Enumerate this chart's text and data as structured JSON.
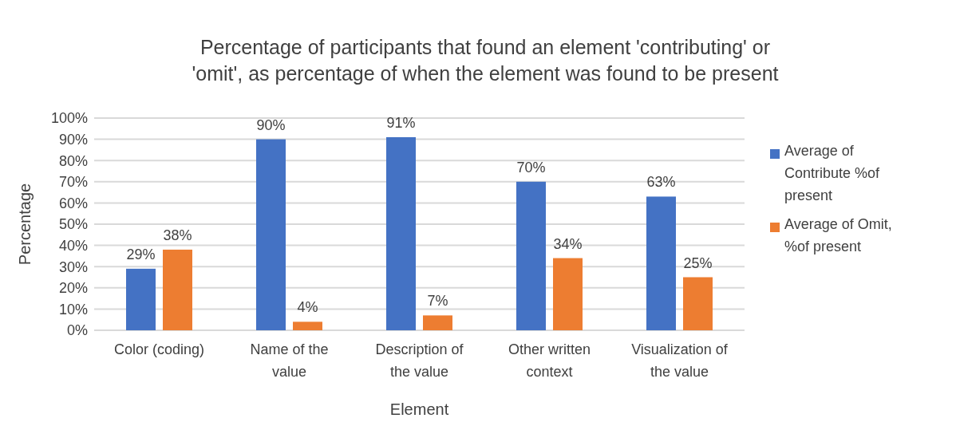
{
  "chart_data": {
    "type": "bar",
    "title": "Percentage of participants that found an element 'contributing' or 'omit', as percentage of when the element was found to be present",
    "xlabel": "Element",
    "ylabel": "Percentage",
    "categories": [
      "Color (coding)",
      "Name of the value",
      "Description of the value",
      "Other written context",
      "Visualization of the value"
    ],
    "series": [
      {
        "name": "Average of Contribute %of present",
        "color": "#4472c4",
        "values": [
          29,
          90,
          91,
          70,
          63
        ],
        "value_labels": [
          "29%",
          "90%",
          "91%",
          "70%",
          "63%"
        ]
      },
      {
        "name": "Average of Omit, %of present",
        "color": "#ed7d31",
        "values": [
          38,
          4,
          7,
          34,
          25
        ],
        "value_labels": [
          "38%",
          "4%",
          "7%",
          "34%",
          "25%"
        ]
      }
    ],
    "ylim": [
      0,
      100
    ],
    "yticks": [
      {
        "value": 0,
        "label": "0%"
      },
      {
        "value": 10,
        "label": "10%"
      },
      {
        "value": 20,
        "label": "20%"
      },
      {
        "value": 30,
        "label": "30%"
      },
      {
        "value": 40,
        "label": "40%"
      },
      {
        "value": 50,
        "label": "50%"
      },
      {
        "value": 60,
        "label": "60%"
      },
      {
        "value": 70,
        "label": "70%"
      },
      {
        "value": 80,
        "label": "80%"
      },
      {
        "value": 90,
        "label": "90%"
      },
      {
        "value": 100,
        "label": "100%"
      }
    ],
    "grid": "y",
    "legend": "right"
  }
}
